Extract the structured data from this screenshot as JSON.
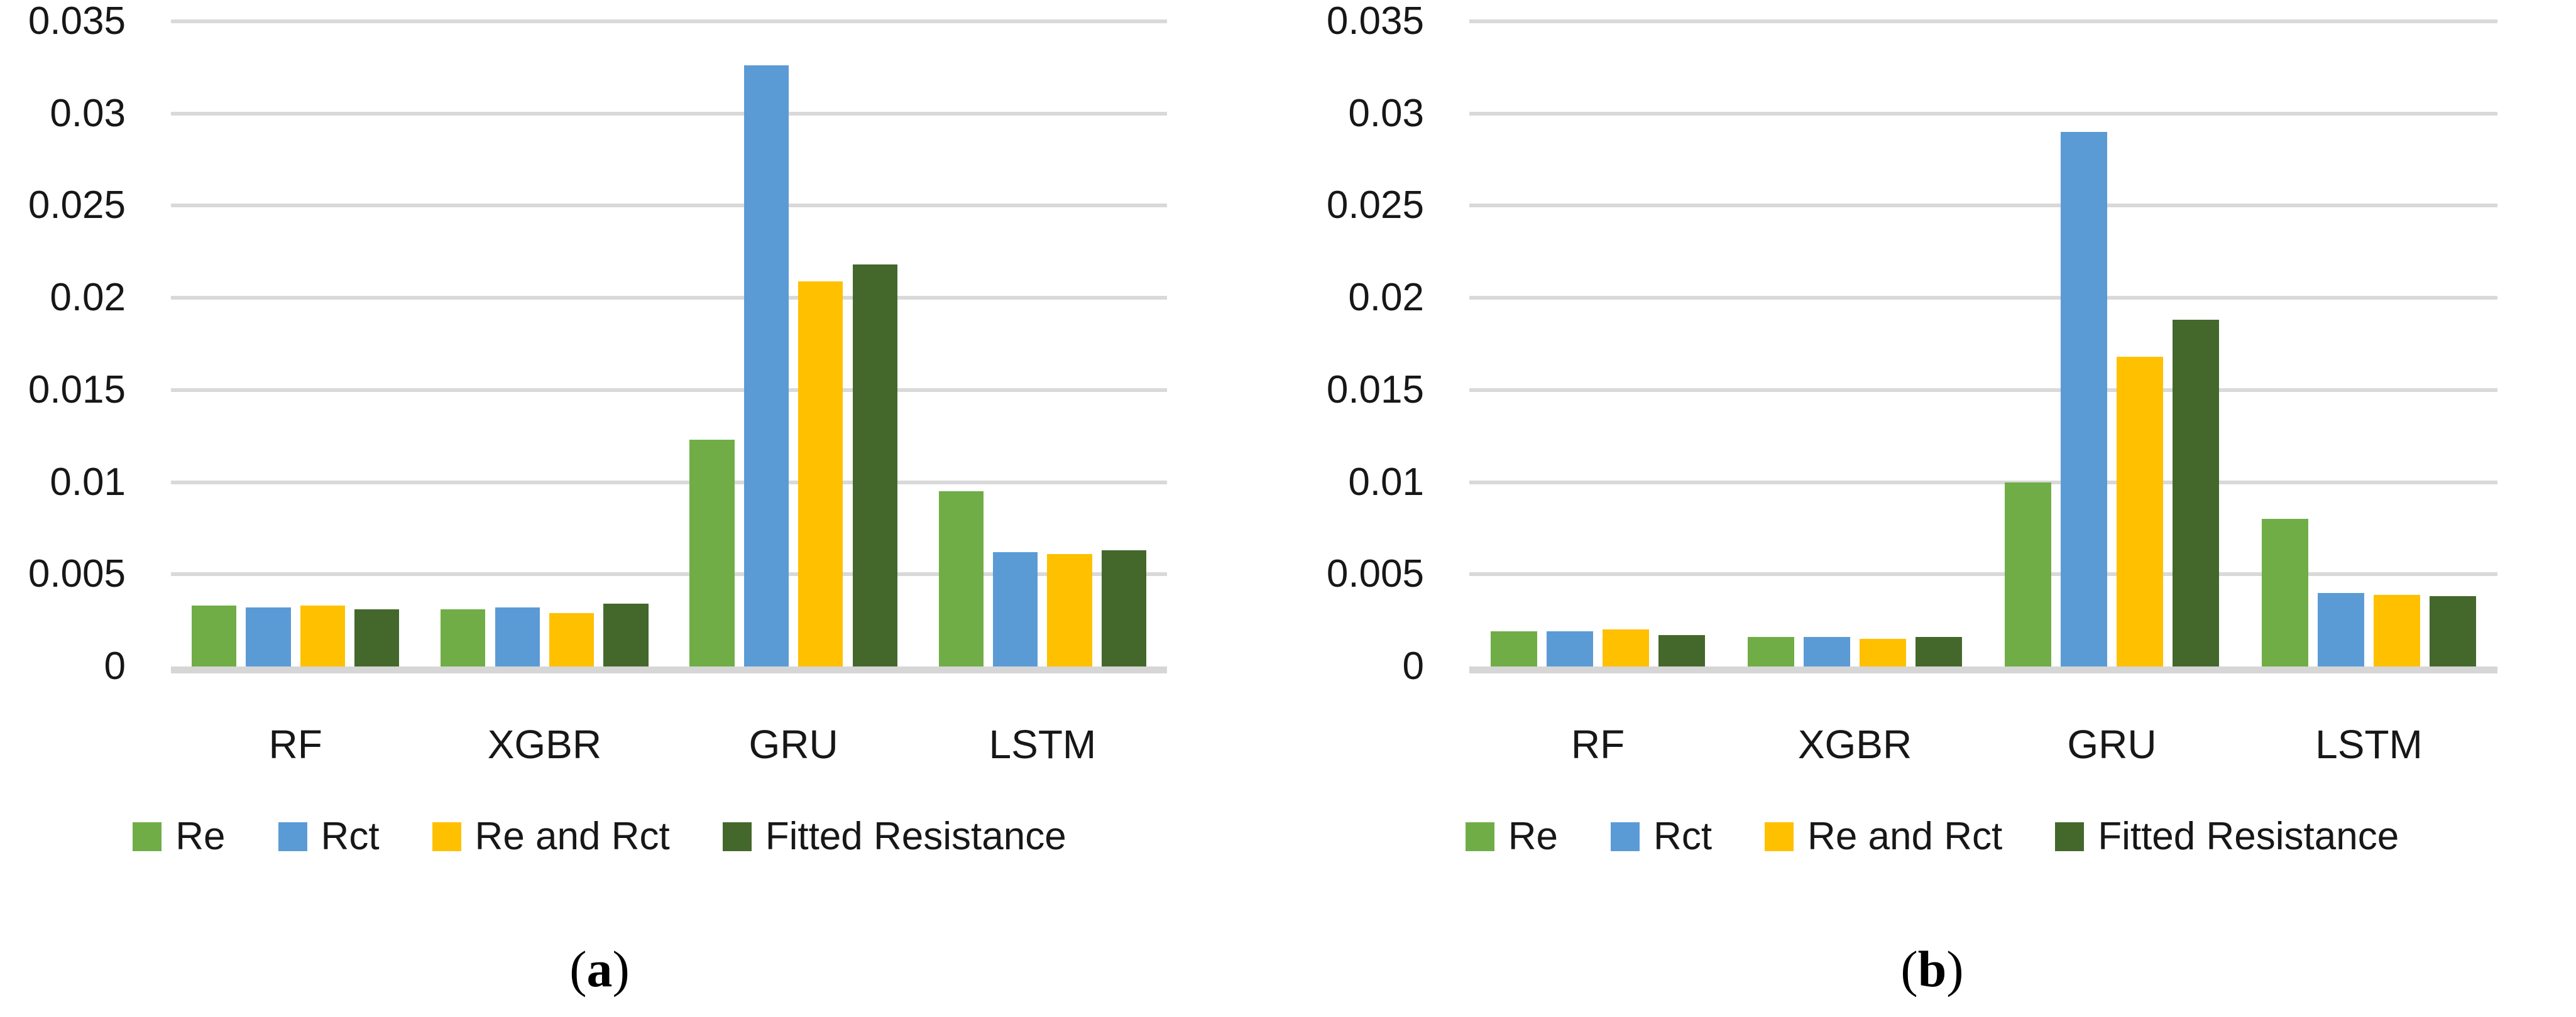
{
  "figure": {
    "background": "#FFFFFF",
    "gridline_color": "#D9D9D9",
    "axis_line_color": "#D6D6D6",
    "text_color": "#171717"
  },
  "chart_data": [
    {
      "id": "a",
      "type": "bar",
      "caption": "(a)",
      "categories": [
        "RF",
        "XGBR",
        "GRU",
        "LSTM"
      ],
      "ylim": [
        0,
        0.035
      ],
      "ytick_step": 0.005,
      "yticks": [
        "0",
        "0.005",
        "0.01",
        "0.015",
        "0.02",
        "0.025",
        "0.03",
        "0.035"
      ],
      "grid": true,
      "legend_position": "bottom",
      "series": [
        {
          "name": "Re",
          "color": "#70AD47",
          "values": [
            0.0033,
            0.0031,
            0.0123,
            0.0095
          ]
        },
        {
          "name": "Rct",
          "color": "#5B9BD5",
          "values": [
            0.0032,
            0.0032,
            0.0326,
            0.0062
          ]
        },
        {
          "name": "Re and Rct",
          "color": "#FFC000",
          "values": [
            0.0033,
            0.0029,
            0.0209,
            0.0061
          ]
        },
        {
          "name": "Fitted Resistance",
          "color": "#44682C",
          "values": [
            0.0031,
            0.0034,
            0.0218,
            0.0063
          ]
        }
      ]
    },
    {
      "id": "b",
      "type": "bar",
      "caption": "(b)",
      "categories": [
        "RF",
        "XGBR",
        "GRU",
        "LSTM"
      ],
      "ylim": [
        0,
        0.035
      ],
      "ytick_step": 0.005,
      "yticks": [
        "0",
        "0.005",
        "0.01",
        "0.015",
        "0.02",
        "0.025",
        "0.03",
        "0.035"
      ],
      "grid": true,
      "legend_position": "bottom",
      "series": [
        {
          "name": "Re",
          "color": "#70AD47",
          "values": [
            0.0019,
            0.0016,
            0.01,
            0.008
          ]
        },
        {
          "name": "Rct",
          "color": "#5B9BD5",
          "values": [
            0.0019,
            0.0016,
            0.029,
            0.004
          ]
        },
        {
          "name": "Re and Rct",
          "color": "#FFC000",
          "values": [
            0.002,
            0.0015,
            0.0168,
            0.0039
          ]
        },
        {
          "name": "Fitted Resistance",
          "color": "#44682C",
          "values": [
            0.0017,
            0.0016,
            0.0188,
            0.0038
          ]
        }
      ]
    }
  ]
}
